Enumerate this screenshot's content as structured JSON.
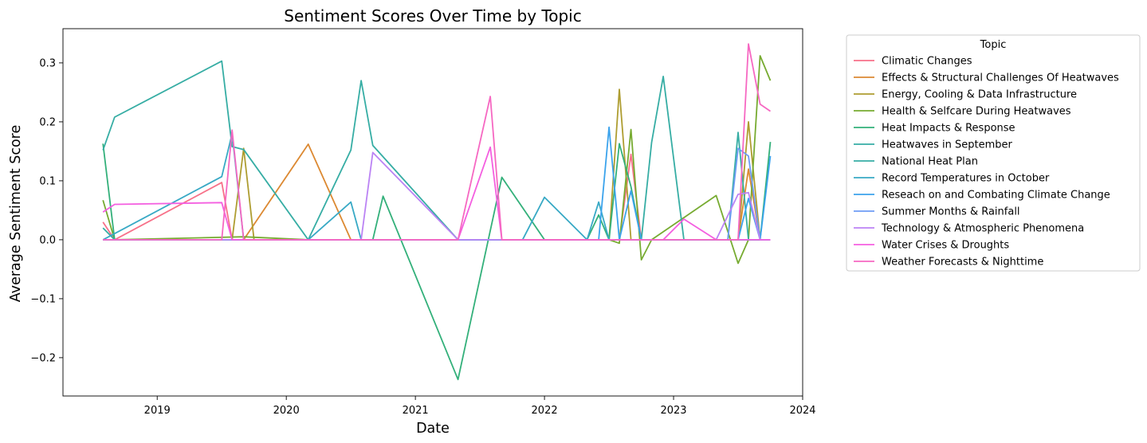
{
  "chart_data": {
    "type": "line",
    "title": "Sentiment Scores Over Time by Topic",
    "xlabel": "Date",
    "ylabel": "Average Sentiment Score",
    "xlim": [
      2018.27,
      2024.0
    ],
    "ylim": [
      -0.265,
      0.358
    ],
    "x_ticks": [
      2019,
      2020,
      2021,
      2022,
      2023,
      2024
    ],
    "x_tick_labels": [
      "2019",
      "2020",
      "2021",
      "2022",
      "2023",
      "2024"
    ],
    "y_ticks": [
      -0.2,
      -0.1,
      0.0,
      0.1,
      0.2,
      0.3
    ],
    "y_tick_labels": [
      "−0.2",
      "−0.1",
      "0.0",
      "0.1",
      "0.2",
      "0.3"
    ],
    "grid": false,
    "legend": {
      "title": "Topic",
      "placement": "outside-right"
    },
    "series": [
      {
        "name": "Climatic Changes",
        "color": "#f77189",
        "points": [
          [
            2018.58,
            0.03
          ],
          [
            2018.67,
            0.0
          ],
          [
            2019.5,
            0.097
          ],
          [
            2019.58,
            0.0
          ],
          [
            2022.58,
            0.0
          ],
          [
            2022.67,
            0.145
          ],
          [
            2022.75,
            0.0
          ],
          [
            2023.75,
            0.0
          ]
        ]
      },
      {
        "name": "Effects & Structural Challenges Of Heatwaves",
        "color": "#dc8932",
        "points": [
          [
            2018.58,
            0.0
          ],
          [
            2019.67,
            0.0
          ],
          [
            2020.17,
            0.162
          ],
          [
            2020.5,
            0.0
          ],
          [
            2023.5,
            0.0
          ],
          [
            2023.58,
            0.12
          ],
          [
            2023.67,
            0.0
          ],
          [
            2023.75,
            0.0
          ]
        ]
      },
      {
        "name": "Energy, Cooling & Data Infrastructure",
        "color": "#ae9d31",
        "points": [
          [
            2018.58,
            0.0
          ],
          [
            2019.58,
            0.0
          ],
          [
            2019.67,
            0.155
          ],
          [
            2019.75,
            0.0
          ],
          [
            2022.5,
            0.0
          ],
          [
            2022.58,
            0.255
          ],
          [
            2022.67,
            0.0
          ],
          [
            2023.5,
            0.0
          ],
          [
            2023.58,
            0.2
          ],
          [
            2023.67,
            0.0
          ],
          [
            2023.75,
            0.0
          ]
        ]
      },
      {
        "name": "Health & Selfcare During Heatwaves",
        "color": "#77ab31",
        "points": [
          [
            2018.58,
            0.067
          ],
          [
            2018.67,
            0.0
          ],
          [
            2019.67,
            0.005
          ],
          [
            2020.17,
            0.0
          ],
          [
            2022.5,
            0.0
          ],
          [
            2022.58,
            -0.006
          ],
          [
            2022.67,
            0.187
          ],
          [
            2022.75,
            -0.034
          ],
          [
            2022.83,
            0.0
          ],
          [
            2023.33,
            0.075
          ],
          [
            2023.5,
            -0.04
          ],
          [
            2023.58,
            0.0
          ],
          [
            2023.67,
            0.312
          ],
          [
            2023.75,
            0.27
          ]
        ]
      },
      {
        "name": "Heat Impacts & Response",
        "color": "#33b07a",
        "points": [
          [
            2018.58,
            0.163
          ],
          [
            2018.67,
            0.0
          ],
          [
            2020.67,
            0.0
          ],
          [
            2020.75,
            0.074
          ],
          [
            2021.33,
            -0.237
          ],
          [
            2021.67,
            0.106
          ],
          [
            2022.0,
            0.0
          ],
          [
            2022.33,
            0.0
          ],
          [
            2022.42,
            0.042
          ],
          [
            2022.5,
            0.0
          ],
          [
            2022.58,
            0.163
          ],
          [
            2022.67,
            0.09
          ],
          [
            2022.75,
            0.0
          ],
          [
            2023.5,
            0.0
          ],
          [
            2023.58,
            0.0
          ],
          [
            2023.67,
            0.0
          ],
          [
            2023.75,
            0.166
          ]
        ]
      },
      {
        "name": "Heatwaves in September",
        "color": "#36ada4",
        "points": [
          [
            2018.58,
            0.02
          ],
          [
            2018.67,
            0.0
          ],
          [
            2020.17,
            0.0
          ],
          [
            2020.5,
            0.152
          ],
          [
            2020.58,
            0.27
          ],
          [
            2020.67,
            0.16
          ],
          [
            2021.33,
            0.0
          ],
          [
            2023.42,
            0.0
          ],
          [
            2023.5,
            0.182
          ],
          [
            2023.58,
            0.0
          ],
          [
            2023.75,
            0.0
          ]
        ]
      },
      {
        "name": "National Heat Plan",
        "color": "#36ada4",
        "points": [
          [
            2018.58,
            0.152
          ],
          [
            2018.67,
            0.208
          ],
          [
            2019.5,
            0.303
          ],
          [
            2019.58,
            0.158
          ],
          [
            2019.67,
            0.153
          ],
          [
            2020.17,
            0.0
          ],
          [
            2022.75,
            0.0
          ],
          [
            2022.83,
            0.165
          ],
          [
            2022.92,
            0.277
          ],
          [
            2023.08,
            0.0
          ],
          [
            2023.75,
            0.0
          ]
        ]
      },
      {
        "name": "Record Temperatures in October",
        "color": "#38a9c5",
        "points": [
          [
            2018.58,
            0.0
          ],
          [
            2019.5,
            0.107
          ],
          [
            2019.58,
            0.18
          ],
          [
            2019.67,
            0.0
          ],
          [
            2020.17,
            0.0
          ],
          [
            2020.5,
            0.064
          ],
          [
            2020.58,
            0.0
          ],
          [
            2021.83,
            0.0
          ],
          [
            2022.0,
            0.072
          ],
          [
            2022.33,
            0.0
          ],
          [
            2022.42,
            0.064
          ],
          [
            2022.5,
            0.0
          ],
          [
            2023.75,
            0.0
          ]
        ]
      },
      {
        "name": "Reseach on and Combating Climate Change",
        "color": "#3ba3ec",
        "points": [
          [
            2018.58,
            0.0
          ],
          [
            2022.42,
            0.0
          ],
          [
            2022.5,
            0.191
          ],
          [
            2022.58,
            0.0
          ],
          [
            2022.67,
            0.083
          ],
          [
            2022.75,
            0.0
          ],
          [
            2023.5,
            0.0
          ],
          [
            2023.58,
            0.07
          ],
          [
            2023.67,
            0.0
          ],
          [
            2023.75,
            0.142
          ]
        ]
      },
      {
        "name": "Summer Months & Rainfall",
        "color": "#6e9bf4",
        "points": [
          [
            2018.58,
            0.0
          ],
          [
            2023.42,
            0.0
          ],
          [
            2023.5,
            0.155
          ],
          [
            2023.58,
            0.142
          ],
          [
            2023.67,
            0.0
          ],
          [
            2023.75,
            0.0
          ]
        ]
      },
      {
        "name": "Technology & Atmospheric Phenomena",
        "color": "#bb83f4",
        "points": [
          [
            2018.58,
            0.0
          ],
          [
            2020.58,
            0.0
          ],
          [
            2020.67,
            0.148
          ],
          [
            2021.33,
            0.0
          ],
          [
            2023.33,
            0.0
          ],
          [
            2023.5,
            0.077
          ],
          [
            2023.58,
            0.08
          ],
          [
            2023.67,
            0.0
          ],
          [
            2023.75,
            0.0
          ]
        ]
      },
      {
        "name": "Water Crises & Droughts",
        "color": "#f45fe0",
        "points": [
          [
            2018.58,
            0.047
          ],
          [
            2018.67,
            0.06
          ],
          [
            2019.5,
            0.063
          ],
          [
            2019.58,
            0.0
          ],
          [
            2021.33,
            0.0
          ],
          [
            2021.58,
            0.157
          ],
          [
            2021.67,
            0.0
          ],
          [
            2022.92,
            0.0
          ],
          [
            2023.08,
            0.035
          ],
          [
            2023.33,
            0.0
          ],
          [
            2023.75,
            0.0
          ]
        ]
      },
      {
        "name": "Weather Forecasts & Nighttime",
        "color": "#f668c2",
        "points": [
          [
            2018.58,
            0.0
          ],
          [
            2019.5,
            0.0
          ],
          [
            2019.58,
            0.186
          ],
          [
            2019.67,
            0.0
          ],
          [
            2021.33,
            0.0
          ],
          [
            2021.58,
            0.243
          ],
          [
            2021.67,
            0.0
          ],
          [
            2023.5,
            0.0
          ],
          [
            2023.58,
            0.332
          ],
          [
            2023.67,
            0.23
          ],
          [
            2023.75,
            0.218
          ]
        ]
      }
    ]
  }
}
